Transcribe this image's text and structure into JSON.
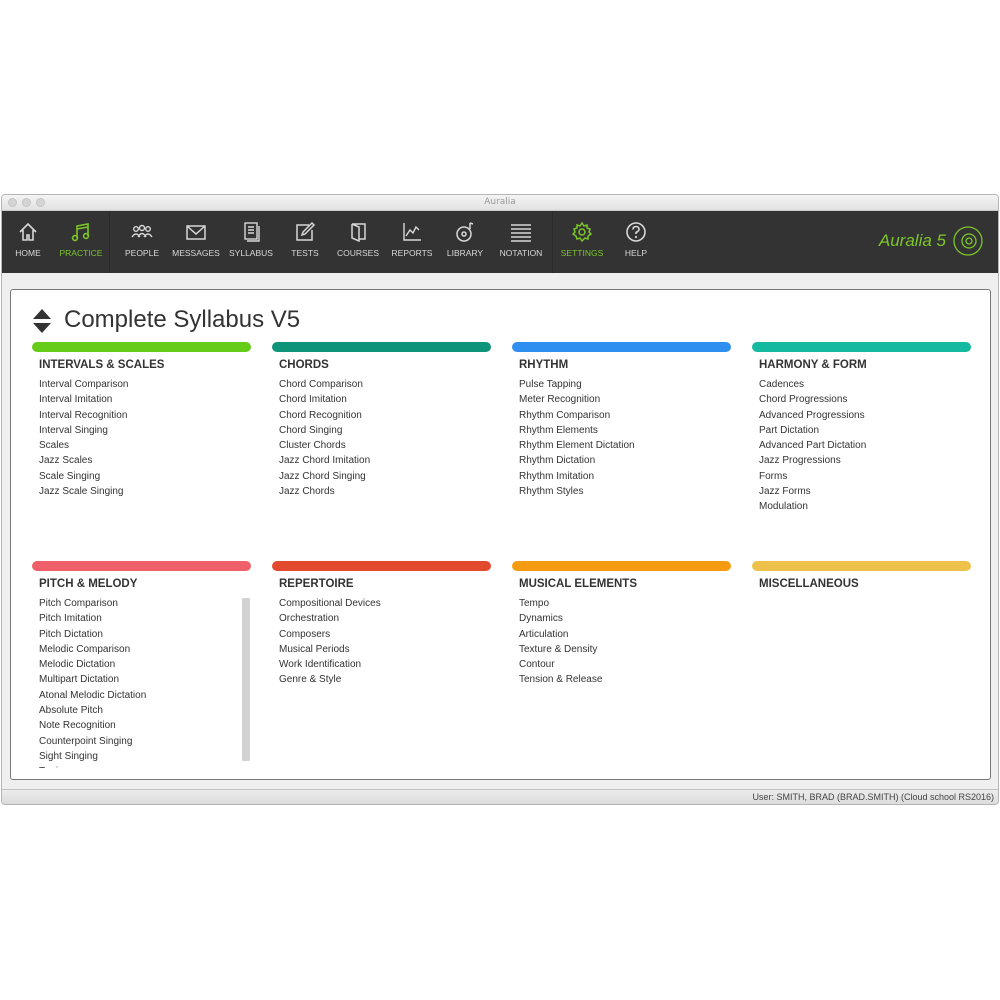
{
  "window": {
    "title": "Auralia"
  },
  "toolbar": {
    "items": [
      {
        "label": "HOME",
        "icon": "home-icon"
      },
      {
        "label": "PRACTICE",
        "icon": "music-note-icon"
      },
      {
        "label": "PEOPLE",
        "icon": "people-icon"
      },
      {
        "label": "MESSAGES",
        "icon": "envelope-icon"
      },
      {
        "label": "SYLLABUS",
        "icon": "document-icon"
      },
      {
        "label": "TESTS",
        "icon": "edit-icon"
      },
      {
        "label": "COURSES",
        "icon": "book-icon"
      },
      {
        "label": "REPORTS",
        "icon": "chart-icon"
      },
      {
        "label": "LIBRARY",
        "icon": "disc-icon"
      },
      {
        "label": "NOTATION",
        "icon": "staff-icon"
      },
      {
        "label": "SETTINGS",
        "icon": "gear-icon"
      },
      {
        "label": "HELP",
        "icon": "help-icon"
      }
    ],
    "accent": "#7cc62a",
    "logo": "Auralia 5"
  },
  "page": {
    "title": "Complete Syllabus V5"
  },
  "sections": [
    {
      "title": "INTERVALS & SCALES",
      "color": "#66cc1a",
      "items": [
        "Interval Comparison",
        "Interval Imitation",
        "Interval Recognition",
        "Interval Singing",
        "Scales",
        "Jazz Scales",
        "Scale Singing",
        "Jazz Scale Singing"
      ]
    },
    {
      "title": "CHORDS",
      "color": "#0e9478",
      "items": [
        "Chord Comparison",
        "Chord Imitation",
        "Chord Recognition",
        "Chord Singing",
        "Cluster Chords",
        "Jazz Chord Imitation",
        "Jazz Chord Singing",
        "Jazz Chords"
      ]
    },
    {
      "title": "RHYTHM",
      "color": "#2f8ff0",
      "items": [
        "Pulse Tapping",
        "Meter Recognition",
        "Rhythm Comparison",
        "Rhythm Elements",
        "Rhythm Element Dictation",
        "Rhythm Dictation",
        "Rhythm Imitation",
        "Rhythm Styles"
      ]
    },
    {
      "title": "HARMONY & FORM",
      "color": "#15b9a0",
      "items": [
        "Cadences",
        "Chord Progressions",
        "Advanced Progressions",
        "Part Dictation",
        "Advanced Part Dictation",
        "Jazz Progressions",
        "Forms",
        "Jazz Forms",
        "Modulation"
      ]
    },
    {
      "title": "PITCH & MELODY",
      "color": "#f0606a",
      "items": [
        "Pitch Comparison",
        "Pitch Imitation",
        "Pitch Dictation",
        "Melodic Comparison",
        "Melodic Dictation",
        "Multipart Dictation",
        "Atonal Melodic Dictation",
        "Absolute Pitch",
        "Note Recognition",
        "Counterpoint Singing",
        "Sight Singing",
        "Tuning"
      ]
    },
    {
      "title": "REPERTOIRE",
      "color": "#e24a2e",
      "items": [
        "Compositional Devices",
        "Orchestration",
        "Composers",
        "Musical Periods",
        "Work Identification",
        "Genre & Style"
      ]
    },
    {
      "title": "MUSICAL ELEMENTS",
      "color": "#f59b12",
      "items": [
        "Tempo",
        "Dynamics",
        "Articulation",
        "Texture & Density",
        "Contour",
        "Tension & Release"
      ]
    },
    {
      "title": "MISCELLANEOUS",
      "color": "#eec24a",
      "items": []
    }
  ],
  "status": {
    "user": "User: SMITH, BRAD (BRAD.SMITH) (Cloud school RS2016)"
  }
}
